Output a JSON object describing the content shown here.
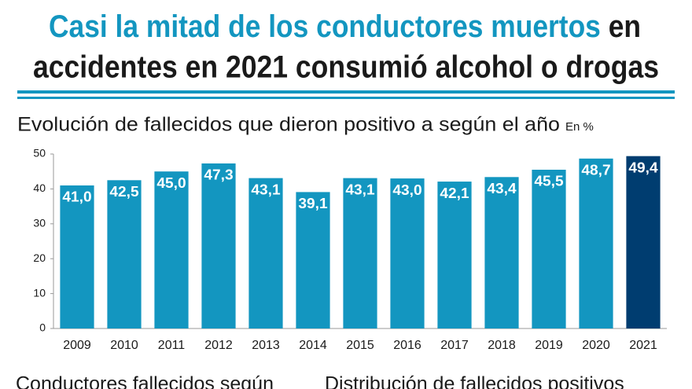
{
  "header": {
    "title_highlight": "Casi la mitad de los conductores muertos",
    "title_rest_1": "en",
    "title_rest_2": "accidentes en 2021 consumió alcohol o drogas"
  },
  "chart_data": {
    "type": "bar",
    "title": "Evolución de fallecidos que dieron positivo a según el año",
    "unit": "En %",
    "categories": [
      "2009",
      "2010",
      "2011",
      "2012",
      "2013",
      "2014",
      "2015",
      "2016",
      "2017",
      "2018",
      "2019",
      "2020",
      "2021"
    ],
    "values": [
      41.0,
      42.5,
      45.0,
      47.3,
      43.1,
      39.1,
      43.1,
      43.0,
      42.1,
      43.4,
      45.5,
      48.7,
      49.4
    ],
    "value_labels": [
      "41,0",
      "42,5",
      "45,0",
      "47,3",
      "43,1",
      "39,1",
      "43,1",
      "43,0",
      "42,1",
      "43,4",
      "45,5",
      "48,7",
      "49,4"
    ],
    "colors": [
      "#1396c0",
      "#1396c0",
      "#1396c0",
      "#1396c0",
      "#1396c0",
      "#1396c0",
      "#1396c0",
      "#1396c0",
      "#1396c0",
      "#1396c0",
      "#1396c0",
      "#1396c0",
      "#003d70"
    ],
    "ylim": [
      0,
      50
    ],
    "yticks": [
      0,
      10,
      20,
      30,
      40,
      50
    ],
    "grid": false
  },
  "sections": [
    "Conductores fallecidos según",
    "Distribución de fallecidos positivos"
  ]
}
